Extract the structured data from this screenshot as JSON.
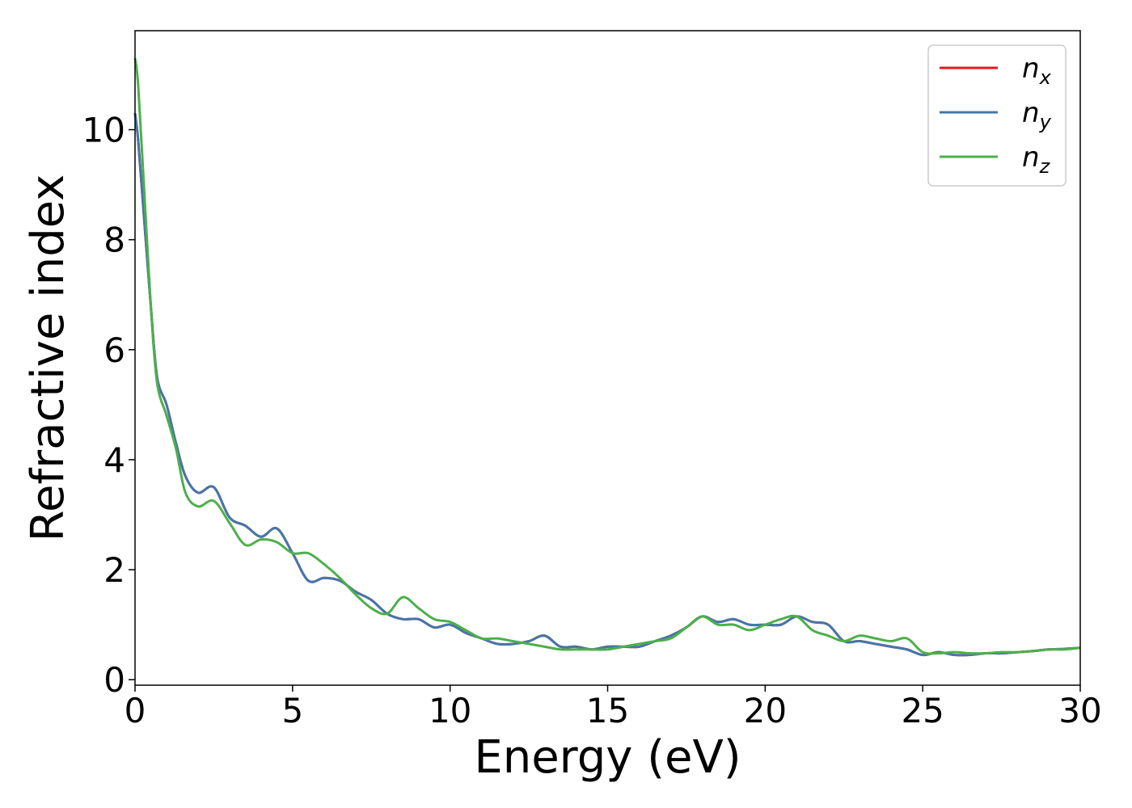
{
  "chart_data": {
    "type": "line",
    "title": "",
    "xlabel": "Energy (eV)",
    "ylabel": "Refractive index",
    "xlim": [
      0,
      30
    ],
    "ylim": [
      -0.1,
      11.8
    ],
    "xticks": [
      0,
      5,
      10,
      15,
      20,
      25,
      30
    ],
    "yticks": [
      0,
      2,
      4,
      6,
      8,
      10
    ],
    "grid": false,
    "legend_position": "top-right",
    "series": [
      {
        "name": "n",
        "subscript": "x",
        "color": "#e41a1c",
        "x": [
          0,
          0.1,
          0.3,
          0.5,
          0.7,
          1,
          1.3,
          1.6,
          2,
          2.5,
          3,
          3.5,
          4,
          4.5,
          5,
          5.5,
          6,
          6.5,
          7,
          7.5,
          8,
          8.5,
          9,
          9.5,
          10,
          10.5,
          11,
          11.5,
          12,
          12.5,
          13,
          13.5,
          14,
          14.5,
          15,
          15.5,
          16,
          16.5,
          17,
          17.5,
          18,
          18.5,
          19,
          19.5,
          20,
          20.5,
          21,
          21.5,
          22,
          22.5,
          23,
          23.5,
          24,
          24.5,
          25,
          25.5,
          26,
          26.5,
          27,
          27.5,
          28,
          28.5,
          29,
          29.5,
          30
        ],
        "y": [
          10.3,
          9.8,
          8.3,
          6.8,
          5.5,
          5.0,
          4.3,
          3.7,
          3.4,
          3.5,
          2.95,
          2.8,
          2.6,
          2.75,
          2.3,
          1.8,
          1.85,
          1.8,
          1.6,
          1.45,
          1.2,
          1.1,
          1.1,
          0.95,
          1.0,
          0.85,
          0.75,
          0.65,
          0.65,
          0.7,
          0.8,
          0.6,
          0.6,
          0.55,
          0.6,
          0.6,
          0.6,
          0.7,
          0.8,
          0.95,
          1.15,
          1.05,
          1.1,
          1.0,
          1.0,
          1.0,
          1.15,
          1.05,
          1.0,
          0.7,
          0.7,
          0.65,
          0.6,
          0.55,
          0.45,
          0.5,
          0.45,
          0.45,
          0.48,
          0.48,
          0.5,
          0.52,
          0.55,
          0.56,
          0.58
        ]
      },
      {
        "name": "n",
        "subscript": "y",
        "color": "#4477aa",
        "x": [
          0,
          0.1,
          0.3,
          0.5,
          0.7,
          1,
          1.3,
          1.6,
          2,
          2.5,
          3,
          3.5,
          4,
          4.5,
          5,
          5.5,
          6,
          6.5,
          7,
          7.5,
          8,
          8.5,
          9,
          9.5,
          10,
          10.5,
          11,
          11.5,
          12,
          12.5,
          13,
          13.5,
          14,
          14.5,
          15,
          15.5,
          16,
          16.5,
          17,
          17.5,
          18,
          18.5,
          19,
          19.5,
          20,
          20.5,
          21,
          21.5,
          22,
          22.5,
          23,
          23.5,
          24,
          24.5,
          25,
          25.5,
          26,
          26.5,
          27,
          27.5,
          28,
          28.5,
          29,
          29.5,
          30
        ],
        "y": [
          10.3,
          9.8,
          8.3,
          6.8,
          5.5,
          5.0,
          4.3,
          3.7,
          3.4,
          3.5,
          2.95,
          2.8,
          2.6,
          2.75,
          2.3,
          1.8,
          1.85,
          1.8,
          1.6,
          1.45,
          1.2,
          1.1,
          1.1,
          0.95,
          1.0,
          0.85,
          0.75,
          0.65,
          0.65,
          0.7,
          0.8,
          0.6,
          0.6,
          0.55,
          0.6,
          0.6,
          0.6,
          0.7,
          0.8,
          0.95,
          1.15,
          1.05,
          1.1,
          1.0,
          1.0,
          1.0,
          1.15,
          1.05,
          1.0,
          0.7,
          0.7,
          0.65,
          0.6,
          0.55,
          0.45,
          0.5,
          0.45,
          0.45,
          0.48,
          0.48,
          0.5,
          0.52,
          0.55,
          0.56,
          0.58
        ]
      },
      {
        "name": "n",
        "subscript": "z",
        "color": "#4daf4a",
        "x": [
          0,
          0.1,
          0.3,
          0.5,
          0.7,
          1,
          1.3,
          1.6,
          2,
          2.5,
          3,
          3.5,
          4,
          4.5,
          5,
          5.5,
          6,
          6.5,
          7,
          7.5,
          8,
          8.5,
          9,
          9.5,
          10,
          10.5,
          11,
          11.5,
          12,
          12.5,
          13,
          13.5,
          14,
          14.5,
          15,
          15.5,
          16,
          16.5,
          17,
          17.5,
          18,
          18.5,
          19,
          19.5,
          20,
          20.5,
          21,
          21.5,
          22,
          22.5,
          23,
          23.5,
          24,
          24.5,
          25,
          25.5,
          26,
          26.5,
          27,
          27.5,
          28,
          28.5,
          29,
          29.5,
          30
        ],
        "y": [
          11.3,
          10.8,
          8.8,
          6.8,
          5.4,
          4.8,
          4.2,
          3.4,
          3.15,
          3.25,
          2.85,
          2.45,
          2.55,
          2.5,
          2.3,
          2.3,
          2.1,
          1.85,
          1.55,
          1.3,
          1.2,
          1.5,
          1.3,
          1.1,
          1.05,
          0.9,
          0.75,
          0.75,
          0.7,
          0.65,
          0.6,
          0.55,
          0.55,
          0.55,
          0.55,
          0.6,
          0.65,
          0.7,
          0.75,
          0.95,
          1.15,
          1.0,
          1.0,
          0.9,
          1.0,
          1.1,
          1.15,
          0.9,
          0.8,
          0.7,
          0.8,
          0.75,
          0.7,
          0.75,
          0.5,
          0.48,
          0.5,
          0.48,
          0.48,
          0.5,
          0.5,
          0.52,
          0.55,
          0.55,
          0.58
        ]
      }
    ]
  }
}
